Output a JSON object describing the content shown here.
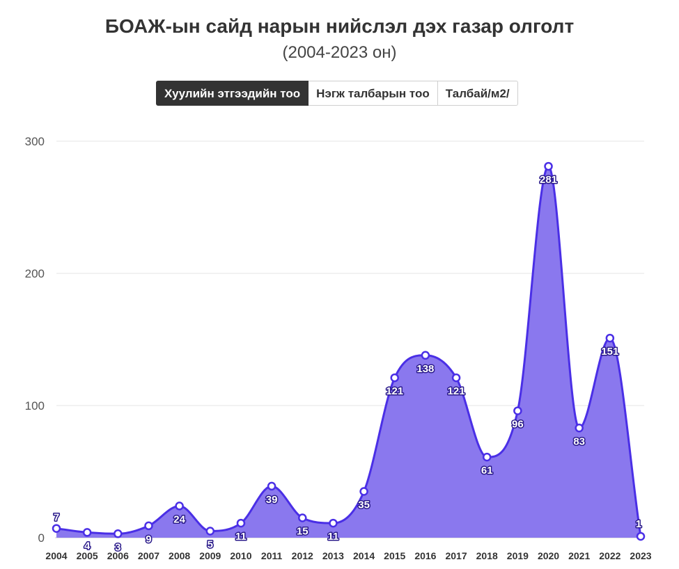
{
  "title": "БОАЖ-ын сайд нарын нийслэл дэх газар олголт",
  "subtitle": "(2004-2023 он)",
  "tabs": [
    {
      "label": "Хуулийн этгээдийн тоо",
      "active": true
    },
    {
      "label": "Нэгж талбарын тоо",
      "active": false
    },
    {
      "label": "Талбай/м2/",
      "active": false
    }
  ],
  "colors": {
    "line": "#4a2fe6",
    "fill": "#8a78ee",
    "grid": "#e6e6e6",
    "label_outline": "#2a1a8a"
  },
  "chart_data": {
    "type": "area",
    "title": "БОАЖ-ын сайд нарын нийслэл дэх газар олголт",
    "subtitle": "(2004-2023 он)",
    "categories": [
      "2004",
      "2005",
      "2006",
      "2007",
      "2008",
      "2009",
      "2010",
      "2011",
      "2012",
      "2013",
      "2014",
      "2015",
      "2016",
      "2017",
      "2018",
      "2019",
      "2020",
      "2021",
      "2022",
      "2023"
    ],
    "series": [
      {
        "values": [
          7,
          4,
          3,
          9,
          24,
          5,
          11,
          39,
          15,
          11,
          35,
          121,
          138,
          121,
          61,
          96,
          281,
          83,
          151,
          1
        ]
      }
    ],
    "ylim": [
      0,
      300
    ],
    "yticks": [
      "0",
      "100",
      "200",
      "300"
    ],
    "grid": true,
    "data_labels": true,
    "xlabel": "",
    "ylabel": ""
  }
}
